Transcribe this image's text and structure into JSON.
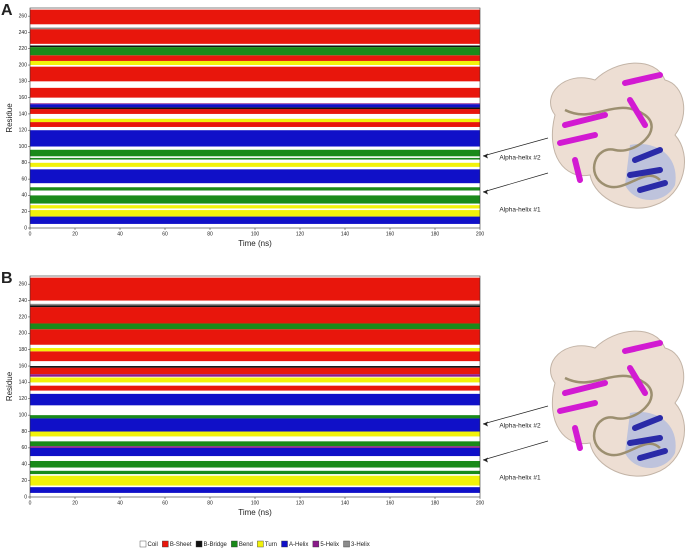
{
  "chart_data": {
    "type": "heatmap",
    "x_label": "Time (ns)",
    "y_label": "Residue",
    "xlim": [
      0,
      200
    ],
    "xticks": [
      0,
      20,
      40,
      60,
      80,
      100,
      120,
      140,
      160,
      180,
      200
    ],
    "ylim": [
      0,
      270
    ],
    "yticks": [
      0,
      20,
      40,
      60,
      80,
      100,
      120,
      140,
      160,
      180,
      200,
      220,
      240,
      260
    ],
    "legend": "bottom",
    "series": [
      {
        "name": "Coil",
        "color": "#ffffff"
      },
      {
        "name": "B-Sheet",
        "color": "#e8160c"
      },
      {
        "name": "B-Bridge",
        "color": "#111111"
      },
      {
        "name": "Bend",
        "color": "#1a8a1a"
      },
      {
        "name": "Turn",
        "color": "#f2f20a"
      },
      {
        "name": "A-Helix",
        "color": "#1010c8"
      },
      {
        "name": "5-Helix",
        "color": "#8a1a8a"
      },
      {
        "name": "3-Helix",
        "color": "#8c8c8c"
      }
    ],
    "panels": [
      {
        "label": "A",
        "annotations": [
          "Alpha-helix #2",
          "Alpha-helix #1"
        ],
        "bands": [
          [
            [
              0,
              4
            ],
            [
              40,
              46
            ],
            [
              96,
              100
            ],
            [
              172,
              176
            ]
          ],
          [
            [
              250,
              268
            ],
            [
              226,
              244
            ],
            [
              205,
              212
            ],
            [
              180,
              198
            ],
            [
              160,
              172
            ],
            [
              140,
              146
            ],
            [
              124,
              130
            ]
          ],
          [
            [
              222,
              224
            ],
            [
              146,
              148
            ]
          ],
          [
            [
              212,
              222
            ],
            [
              88,
              96
            ],
            [
              30,
              40
            ],
            [
              84,
              86
            ],
            [
              46,
              50
            ]
          ],
          [
            [
              200,
              205
            ],
            [
              75,
              80
            ],
            [
              14,
              22
            ],
            [
              130,
              134
            ],
            [
              24,
              28
            ]
          ],
          [
            [
              148,
              152
            ],
            [
              100,
              120
            ],
            [
              55,
              72
            ],
            [
              5,
              14
            ]
          ],
          [
            [
              152,
              153
            ]
          ],
          [
            [
              244,
              246
            ]
          ]
        ]
      },
      {
        "label": "B",
        "annotations": [
          "Alpha-helix #2",
          "Alpha-helix #1"
        ],
        "bands": [
          [
            [
              0,
              4
            ],
            [
              44,
              50
            ],
            [
              100,
              108
            ],
            [
              180,
              184
            ]
          ],
          [
            [
              240,
              268
            ],
            [
              212,
              232
            ],
            [
              186,
              205
            ],
            [
              166,
              178
            ],
            [
              150,
              158
            ],
            [
              130,
              136
            ]
          ],
          [
            [
              232,
              234
            ],
            [
              158,
              160
            ]
          ],
          [
            [
              205,
              212
            ],
            [
              96,
              100
            ],
            [
              36,
              44
            ],
            [
              62,
              68
            ],
            [
              28,
              32
            ]
          ],
          [
            [
              178,
              182
            ],
            [
              74,
              80
            ],
            [
              14,
              22
            ],
            [
              140,
              146
            ],
            [
              22,
              26
            ]
          ],
          [
            [
              112,
              126
            ],
            [
              80,
              96
            ],
            [
              50,
              60
            ],
            [
              5,
              12
            ]
          ],
          [
            [
              147,
              150
            ],
            [
              60,
              62
            ]
          ],
          [
            [
              234,
              236
            ]
          ]
        ]
      }
    ]
  }
}
